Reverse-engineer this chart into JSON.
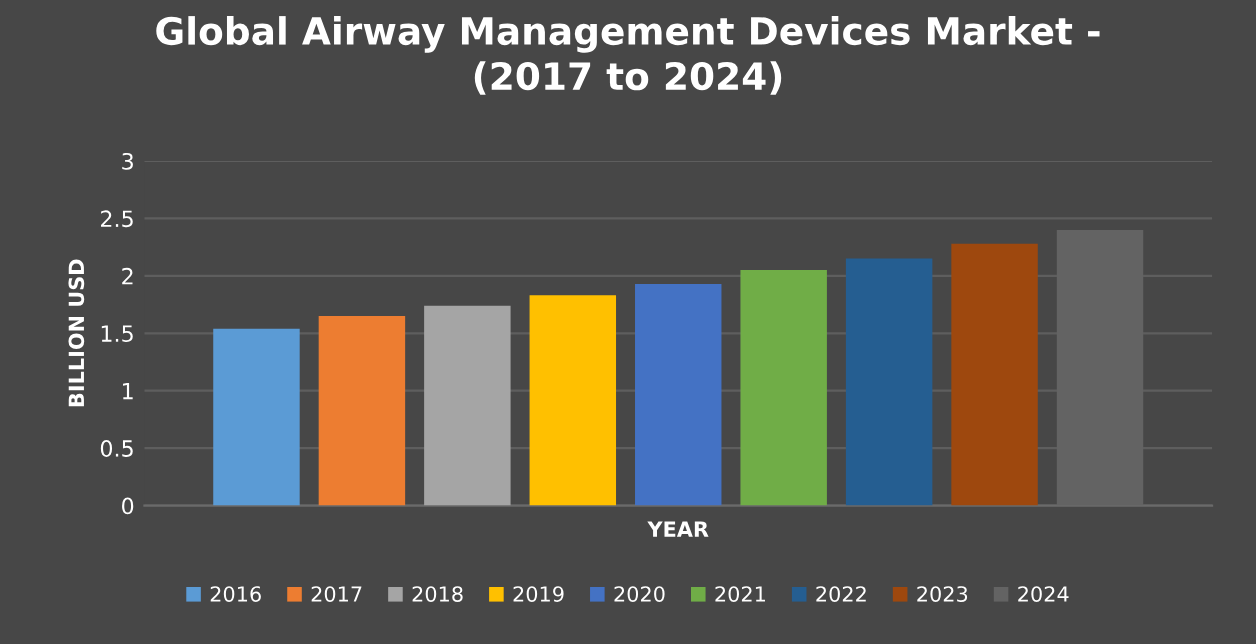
{
  "chart_data": {
    "type": "bar",
    "title": "Global Airway Management Devices Market -\n(2017 to 2024)",
    "xlabel": "YEAR",
    "ylabel": "BILLION USD",
    "categories": [
      null
    ],
    "series": [
      {
        "name": "2016",
        "color": "#5b9bd5",
        "values": [
          1.54
        ]
      },
      {
        "name": "2017",
        "color": "#ed7d31",
        "values": [
          1.65
        ]
      },
      {
        "name": "2018",
        "color": "#a5a5a5",
        "values": [
          1.74
        ]
      },
      {
        "name": "2019",
        "color": "#ffc000",
        "values": [
          1.83
        ]
      },
      {
        "name": "2020",
        "color": "#4472c4",
        "values": [
          1.93
        ]
      },
      {
        "name": "2021",
        "color": "#70ad47",
        "values": [
          2.05
        ]
      },
      {
        "name": "2022",
        "color": "#255e91",
        "values": [
          2.15
        ]
      },
      {
        "name": "2023",
        "color": "#9e480e",
        "values": [
          2.28
        ]
      },
      {
        "name": "2024",
        "color": "#636363",
        "values": [
          2.4
        ]
      }
    ],
    "ylim": [
      0,
      3
    ],
    "yticks": [
      0,
      0.5,
      1,
      1.5,
      2,
      2.5,
      3
    ],
    "grid": "y",
    "legend": "bottom"
  }
}
